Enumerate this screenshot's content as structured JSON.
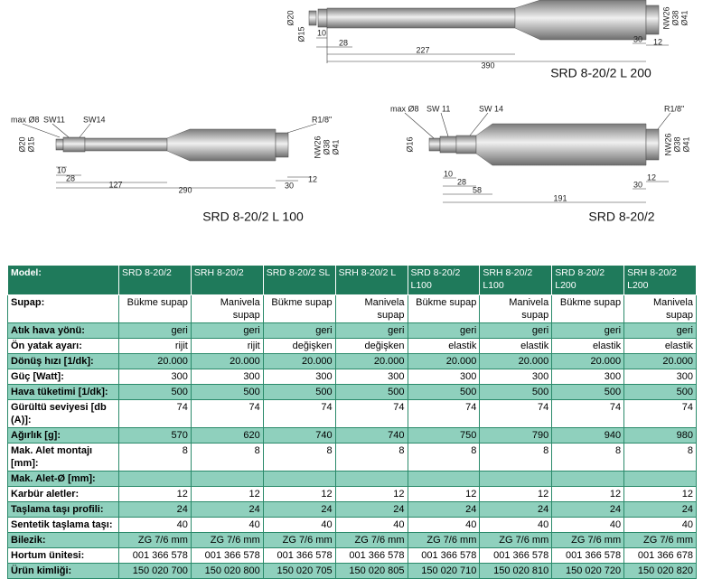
{
  "drawings": [
    {
      "labels": [
        "Ø20",
        "Ø15",
        "10",
        "28",
        "227",
        "390",
        "30",
        "12",
        "NW26",
        "Ø38",
        "Ø41"
      ],
      "caption": "SRD 8-20/2 L 200"
    },
    {
      "labels": [
        "max Ø8",
        "SW11",
        "SW14",
        "R1/8\"",
        "Ø20",
        "Ø15",
        "10",
        "28",
        "127",
        "290",
        "30",
        "12",
        "NW26",
        "Ø38",
        "Ø41"
      ],
      "caption": "SRD 8-20/2 L 100"
    },
    {
      "labels": [
        "max Ø8",
        "SW 11",
        "SW 14",
        "R1/8\"",
        "Ø16",
        "10",
        "28",
        "58",
        "191",
        "30",
        "12",
        "NW26",
        "Ø38",
        "Ø41"
      ],
      "caption": "SRD 8-20/2"
    }
  ],
  "table": {
    "header": [
      "Model:",
      "SRD 8-20/2",
      "SRH 8-20/2",
      "SRD 8-20/2 SL",
      "SRH 8-20/2 L",
      "SRD 8-20/2 L100",
      "SRH 8-20/2 L100",
      "SRD 8-20/2 L200",
      "SRH 8-20/2 L200"
    ],
    "rows": [
      [
        "Supap:",
        "Bükme supap",
        "Manivela supap",
        "Bükme supap",
        "Manivela supap",
        "Bükme supap",
        "Manivela supap",
        "Bükme supap",
        "Manivela supap"
      ],
      [
        "Atık hava yönü:",
        "geri",
        "geri",
        "geri",
        "geri",
        "geri",
        "geri",
        "geri",
        "geri"
      ],
      [
        "Ön yatak ayarı:",
        "rijit",
        "rijit",
        "değişken",
        "değişken",
        "elastik",
        "elastik",
        "elastik",
        "elastik"
      ],
      [
        "Dönüş hızı [1/dk]:",
        "20.000",
        "20.000",
        "20.000",
        "20.000",
        "20.000",
        "20.000",
        "20.000",
        "20.000"
      ],
      [
        "Güç [Watt]:",
        "300",
        "300",
        "300",
        "300",
        "300",
        "300",
        "300",
        "300"
      ],
      [
        "Hava tüketimi [1/dk]:",
        "500",
        "500",
        "500",
        "500",
        "500",
        "500",
        "500",
        "500"
      ],
      [
        "Gürültü seviyesi [db (A)]:",
        "74",
        "74",
        "74",
        "74",
        "74",
        "74",
        "74",
        "74"
      ],
      [
        "Ağırlık [g]:",
        "570",
        "620",
        "740",
        "740",
        "750",
        "790",
        "940",
        "980"
      ],
      [
        "Mak. Alet montajı [mm]:",
        "8",
        "8",
        "8",
        "8",
        "8",
        "8",
        "8",
        "8"
      ],
      [
        "Mak. Alet-Ø [mm]:"
      ],
      [
        "Karbür aletler:",
        "12",
        "12",
        "12",
        "12",
        "12",
        "12",
        "12",
        "12"
      ],
      [
        "Taşlama taşı profili:",
        "24",
        "24",
        "24",
        "24",
        "24",
        "24",
        "24",
        "24"
      ],
      [
        "Sentetik taşlama taşı:",
        "40",
        "40",
        "40",
        "40",
        "40",
        "40",
        "40",
        "40"
      ],
      [
        "Bilezik:",
        "ZG 7/6 mm",
        "ZG 7/6 mm",
        "ZG 7/6 mm",
        "ZG 7/6 mm",
        "ZG 7/6 mm",
        "ZG 7/6 mm",
        "ZG 7/6 mm",
        "ZG 7/6 mm"
      ],
      [
        "Hortum ünitesi:",
        "001 366 578",
        "001 366 578",
        "001 366 578",
        "001 366 578",
        "001 366 578",
        "001 366 578",
        "001 366 578",
        "001 366 678"
      ],
      [
        "Ürün kimliği:",
        "150 020 700",
        "150 020 800",
        "150 020 705",
        "150 020 805",
        "150 020 710",
        "150 020 810",
        "150 020 720",
        "150 020 820"
      ]
    ]
  }
}
